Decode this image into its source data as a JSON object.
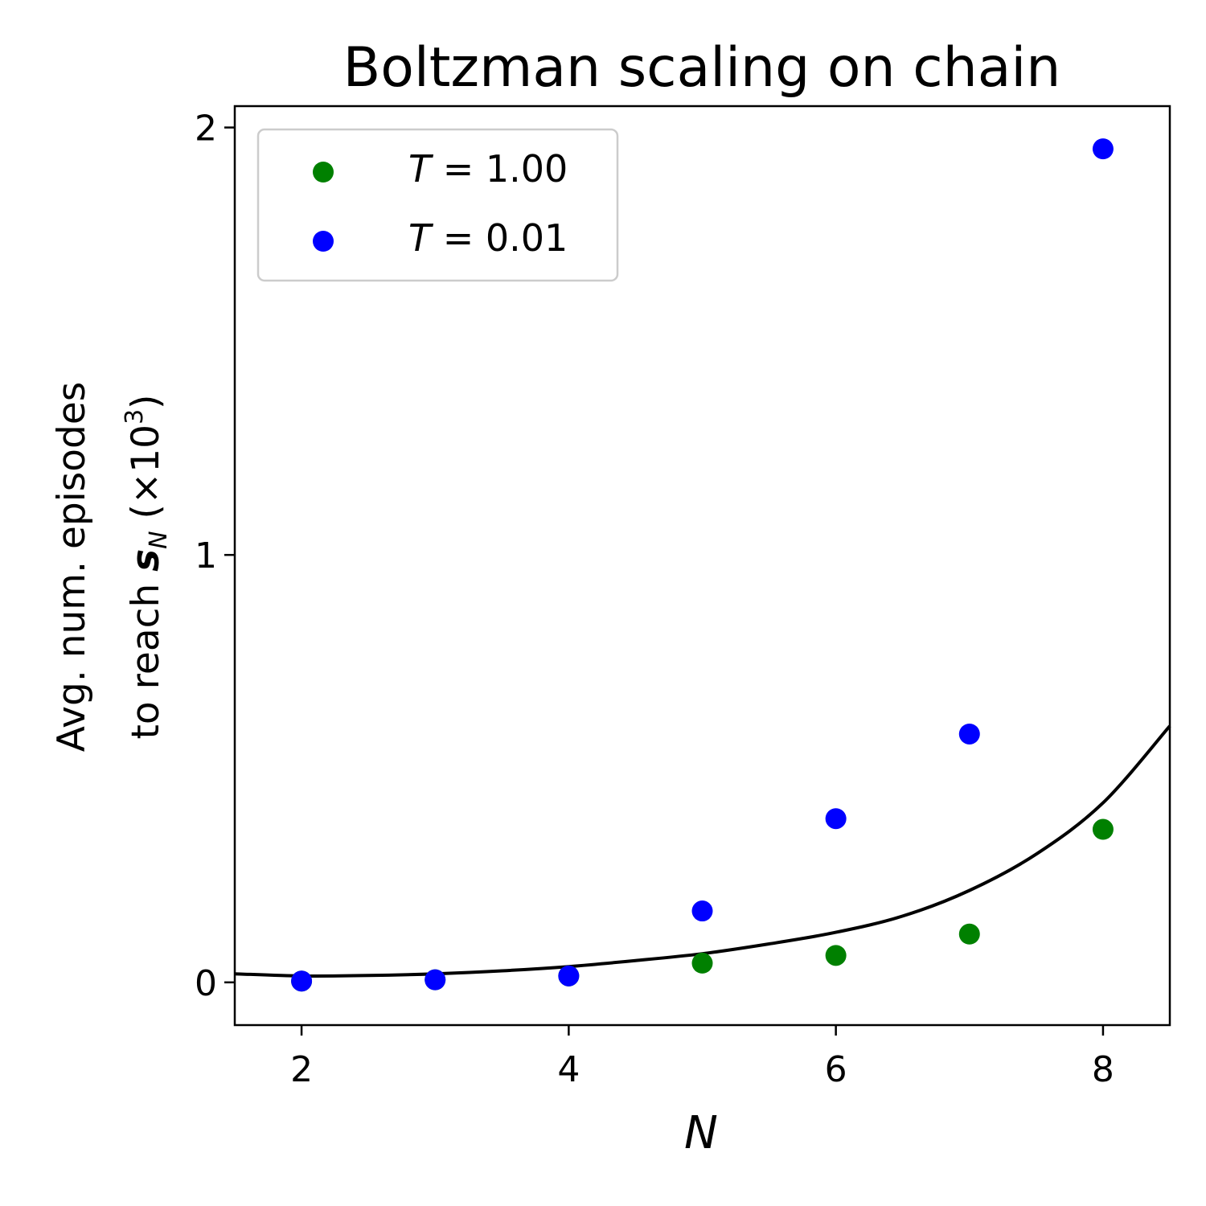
{
  "chart_data": {
    "type": "scatter",
    "title": "Boltzman scaling on chain",
    "xlabel": "N",
    "ylabel": {
      "line1": "Avg. num. episodes",
      "line2_prefix": "to reach ",
      "line2_symbol": "s",
      "line2_subscript": "N",
      "line2_scale": " (×10",
      "line2_exponent": "3",
      "line2_close": ")"
    },
    "xlim": [
      1.5,
      8.5
    ],
    "ylim": [
      -0.1,
      2.05
    ],
    "xticks": [
      {
        "value": 2,
        "label": "2"
      },
      {
        "value": 4,
        "label": "4"
      },
      {
        "value": 6,
        "label": "6"
      },
      {
        "value": 8,
        "label": "8"
      }
    ],
    "yticks": [
      {
        "value": 0,
        "label": "0"
      },
      {
        "value": 1,
        "label": "1"
      },
      {
        "value": 2,
        "label": "2"
      }
    ],
    "grid": false,
    "legend_position": "top-left",
    "series": [
      {
        "name": "T = 1.00",
        "legend_var": "T",
        "legend_rest": " = 1.00",
        "color": "#008000",
        "x": [
          2,
          3,
          4,
          5,
          6,
          7,
          8
        ],
        "y": [
          0.003,
          0.006,
          0.015,
          0.045,
          0.063,
          0.113,
          0.358
        ]
      },
      {
        "name": "T = 0.01",
        "legend_var": "T",
        "legend_rest": " = 0.01",
        "color": "#0000ff",
        "x": [
          2,
          3,
          4,
          5,
          6,
          7,
          8
        ],
        "y": [
          0.003,
          0.006,
          0.015,
          0.167,
          0.383,
          0.581,
          1.95
        ]
      }
    ],
    "fit_curve": {
      "color": "#000000",
      "x": [
        1.5,
        2,
        2.5,
        3,
        3.5,
        4,
        4.5,
        5,
        5.5,
        6,
        6.5,
        7,
        7.5,
        8,
        8.5
      ],
      "y": [
        0.02,
        0.015,
        0.016,
        0.02,
        0.027,
        0.037,
        0.051,
        0.067,
        0.09,
        0.117,
        0.155,
        0.215,
        0.3,
        0.42,
        0.6
      ]
    }
  }
}
